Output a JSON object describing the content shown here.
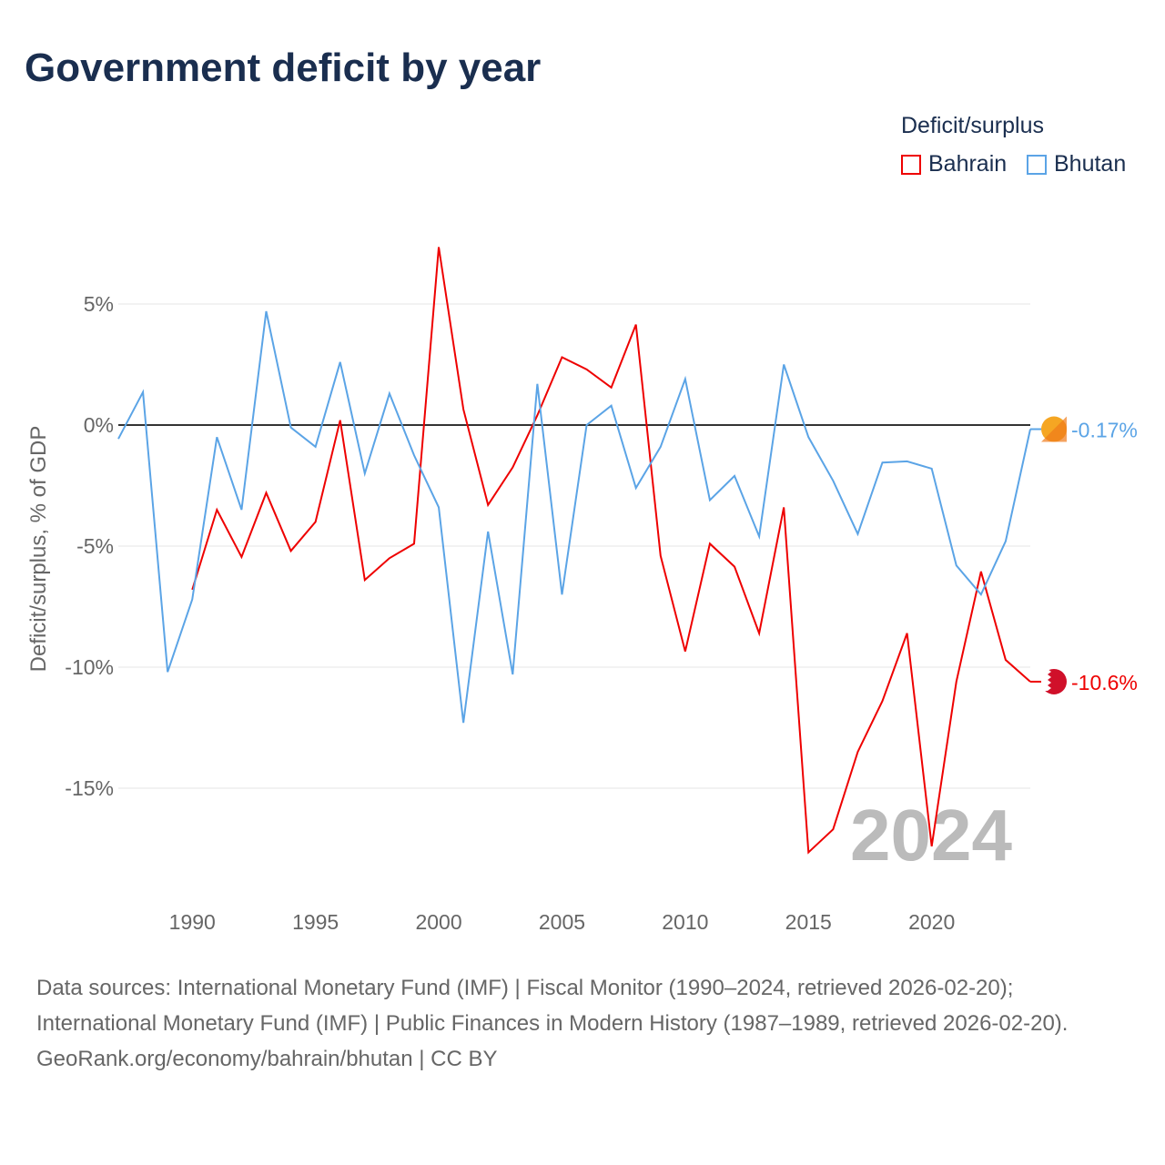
{
  "title": "Government deficit by year",
  "legend": {
    "title": "Deficit/surplus",
    "items": [
      {
        "name": "Bahrain",
        "color": "#ee0000"
      },
      {
        "name": "Bhutan",
        "color": "#5ba4e6"
      }
    ]
  },
  "chart_data": {
    "type": "line",
    "title": "Government deficit by year",
    "ylabel": "Deficit/surplus, % of GDP",
    "xlabel": "",
    "xlim": [
      1987,
      2024
    ],
    "ylim": [
      -19,
      8
    ],
    "yticks": [
      5,
      0,
      -5,
      -10,
      -15
    ],
    "ytick_labels": [
      "5%",
      "0%",
      "-5%",
      "-10%",
      "-15%"
    ],
    "xticks": [
      1990,
      1995,
      2000,
      2005,
      2010,
      2015,
      2020
    ],
    "xtick_labels": [
      "1990",
      "1995",
      "2000",
      "2005",
      "2010",
      "2015",
      "2020"
    ],
    "current_year_label": "2024",
    "series": [
      {
        "name": "Bahrain",
        "color": "#ee0000",
        "end_label": "-10.6%",
        "x": [
          1990,
          1991,
          1992,
          1993,
          1994,
          1995,
          1996,
          1997,
          1998,
          1999,
          2000,
          2001,
          2002,
          2003,
          2004,
          2005,
          2006,
          2007,
          2008,
          2009,
          2010,
          2011,
          2012,
          2013,
          2014,
          2015,
          2016,
          2017,
          2018,
          2019,
          2020,
          2021,
          2022,
          2023,
          2024
        ],
        "values": [
          -6.8,
          -3.5,
          -5.45,
          -2.8,
          -5.2,
          -4.0,
          0.2,
          -6.4,
          -5.5,
          -4.9,
          7.35,
          0.65,
          -3.3,
          -1.75,
          0.4,
          2.8,
          2.3,
          1.55,
          4.15,
          -5.4,
          -9.35,
          -4.9,
          -5.85,
          -8.6,
          -3.4,
          -17.65,
          -16.7,
          -13.5,
          -11.4,
          -8.6,
          -17.4,
          -10.6,
          -6.05,
          -9.7,
          -10.6
        ]
      },
      {
        "name": "Bhutan",
        "color": "#5ba4e6",
        "end_label": "-0.17%",
        "x": [
          1987,
          1988,
          1989,
          1990,
          1991,
          1992,
          1993,
          1994,
          1995,
          1996,
          1997,
          1998,
          1999,
          2000,
          2001,
          2002,
          2003,
          2004,
          2005,
          2006,
          2007,
          2008,
          2009,
          2010,
          2011,
          2012,
          2013,
          2014,
          2015,
          2016,
          2017,
          2018,
          2019,
          2020,
          2021,
          2022,
          2023,
          2024
        ],
        "values": [
          -0.57,
          1.36,
          -10.2,
          -7.2,
          -0.5,
          -3.5,
          4.7,
          -0.1,
          -0.9,
          2.6,
          -2.0,
          1.3,
          -1.25,
          -3.4,
          -12.3,
          -4.4,
          -10.3,
          1.7,
          -7.0,
          0,
          0.8,
          -2.6,
          -0.9,
          1.9,
          -3.1,
          -2.1,
          -4.6,
          2.5,
          -0.5,
          -2.3,
          -4.5,
          -1.55,
          -1.5,
          -1.8,
          -5.8,
          -7.0,
          -4.8,
          -0.17
        ]
      }
    ]
  },
  "source": {
    "line1": "Data sources: International Monetary Fund (IMF) | Fiscal Monitor (1990–2024, retrieved 2026-02-20); International Monetary Fund (IMF) | Public Finances in Modern History (1987–1989, retrieved 2026-02-20).",
    "line2": "GeoRank.org/economy/bahrain/bhutan | CC BY"
  }
}
